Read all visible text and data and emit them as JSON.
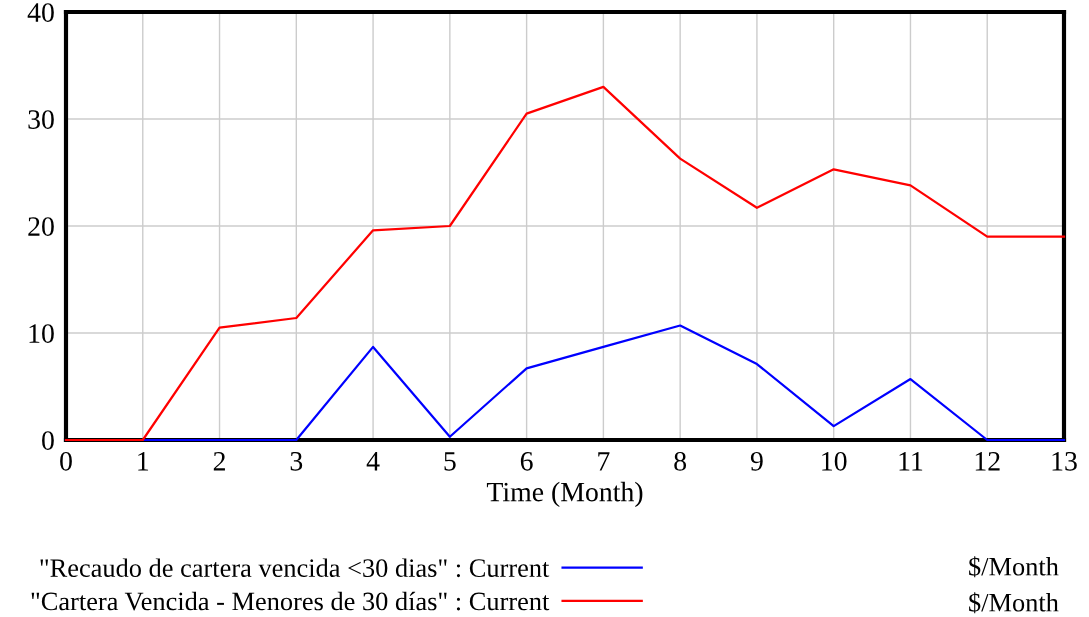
{
  "chart_data": {
    "type": "line",
    "xlabel": "Time (Month)",
    "x": [
      0,
      1,
      2,
      3,
      4,
      5,
      6,
      7,
      8,
      9,
      10,
      11,
      12,
      13
    ],
    "series": [
      {
        "name": "\"Recaudo de cartera vencida <30 dias\" : Current",
        "color": "#0000ff",
        "values": [
          0,
          0,
          0,
          0,
          8.7,
          0.3,
          6.7,
          8.7,
          10.7,
          7.1,
          1.3,
          5.7,
          0,
          0
        ]
      },
      {
        "name": "\"Cartera Vencida - Menores de 30 días\" : Current",
        "color": "#ff0000",
        "values": [
          0,
          0,
          10.5,
          11.4,
          19.6,
          20.0,
          30.5,
          33.0,
          26.3,
          21.7,
          25.3,
          23.8,
          19.0,
          19.0
        ]
      }
    ],
    "annotations": [
      "$/Month",
      "$/Month"
    ],
    "xlim": [
      0,
      13
    ],
    "xticks": [
      0,
      1,
      2,
      3,
      4,
      5,
      6,
      7,
      8,
      9,
      10,
      11,
      12,
      13
    ],
    "ylim": [
      0,
      40
    ],
    "yticks": [
      0,
      10,
      20,
      30,
      40
    ],
    "grid": true,
    "legend": "bottom",
    "line_style": "solid",
    "marker": "none"
  }
}
